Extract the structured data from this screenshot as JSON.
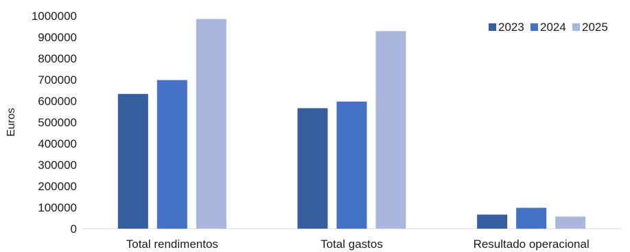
{
  "chart_data": {
    "type": "bar",
    "title": "",
    "xlabel": "",
    "ylabel": "Euros",
    "ylim": [
      0,
      1000000
    ],
    "yticks": [
      0,
      100000,
      200000,
      300000,
      400000,
      500000,
      600000,
      700000,
      800000,
      900000,
      1000000
    ],
    "ytick_labels": [
      "0",
      "100000",
      "200000",
      "300000",
      "400000",
      "500000",
      "600000",
      "700000",
      "800000",
      "900000",
      "1000000"
    ],
    "categories": [
      "Total rendimentos",
      "Total gastos",
      "Resultado operacional"
    ],
    "series": [
      {
        "name": "2023",
        "color": "#365f9f",
        "values": [
          633000,
          566000,
          66000
        ]
      },
      {
        "name": "2024",
        "color": "#4472c4",
        "values": [
          698000,
          597000,
          98000
        ]
      },
      {
        "name": "2025",
        "color": "#a9b7dc",
        "values": [
          985000,
          928000,
          57000
        ]
      }
    ],
    "grid": false,
    "legend_position": "top-right"
  }
}
